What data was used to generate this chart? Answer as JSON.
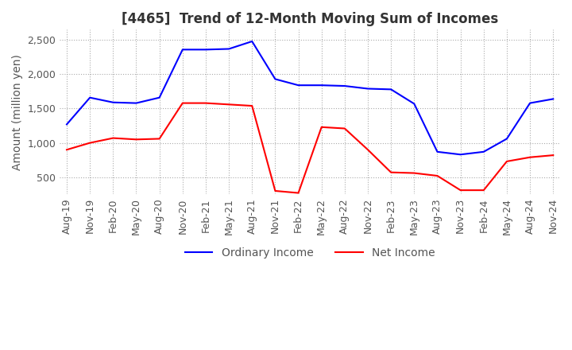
{
  "title": "[4465]  Trend of 12-Month Moving Sum of Incomes",
  "ylabel": "Amount (million yen)",
  "ylim": [
    250,
    2650
  ],
  "yticks": [
    500,
    1000,
    1500,
    2000,
    2500
  ],
  "x_labels": [
    "Aug-19",
    "Nov-19",
    "Feb-20",
    "May-20",
    "Aug-20",
    "Nov-20",
    "Feb-21",
    "May-21",
    "Aug-21",
    "Nov-21",
    "Feb-22",
    "May-22",
    "Aug-22",
    "Nov-22",
    "Feb-23",
    "May-23",
    "Aug-23",
    "Nov-23",
    "Feb-24",
    "May-24",
    "Aug-24",
    "Nov-24"
  ],
  "ordinary_income": [
    1270,
    1660,
    1590,
    1580,
    1660,
    2360,
    2360,
    2370,
    2480,
    1930,
    1840,
    1840,
    1830,
    1790,
    1780,
    1570,
    870,
    830,
    870,
    1060,
    1580,
    1640
  ],
  "net_income": [
    900,
    1000,
    1070,
    1050,
    1060,
    1580,
    1580,
    1560,
    1540,
    300,
    270,
    1230,
    1210,
    900,
    570,
    560,
    520,
    310,
    310,
    730,
    790,
    820
  ],
  "ordinary_color": "#0000FF",
  "net_color": "#FF0000",
  "grid_color": "#AAAAAA",
  "background_color": "#FFFFFF",
  "title_fontsize": 12,
  "legend_fontsize": 10,
  "axis_fontsize": 9
}
